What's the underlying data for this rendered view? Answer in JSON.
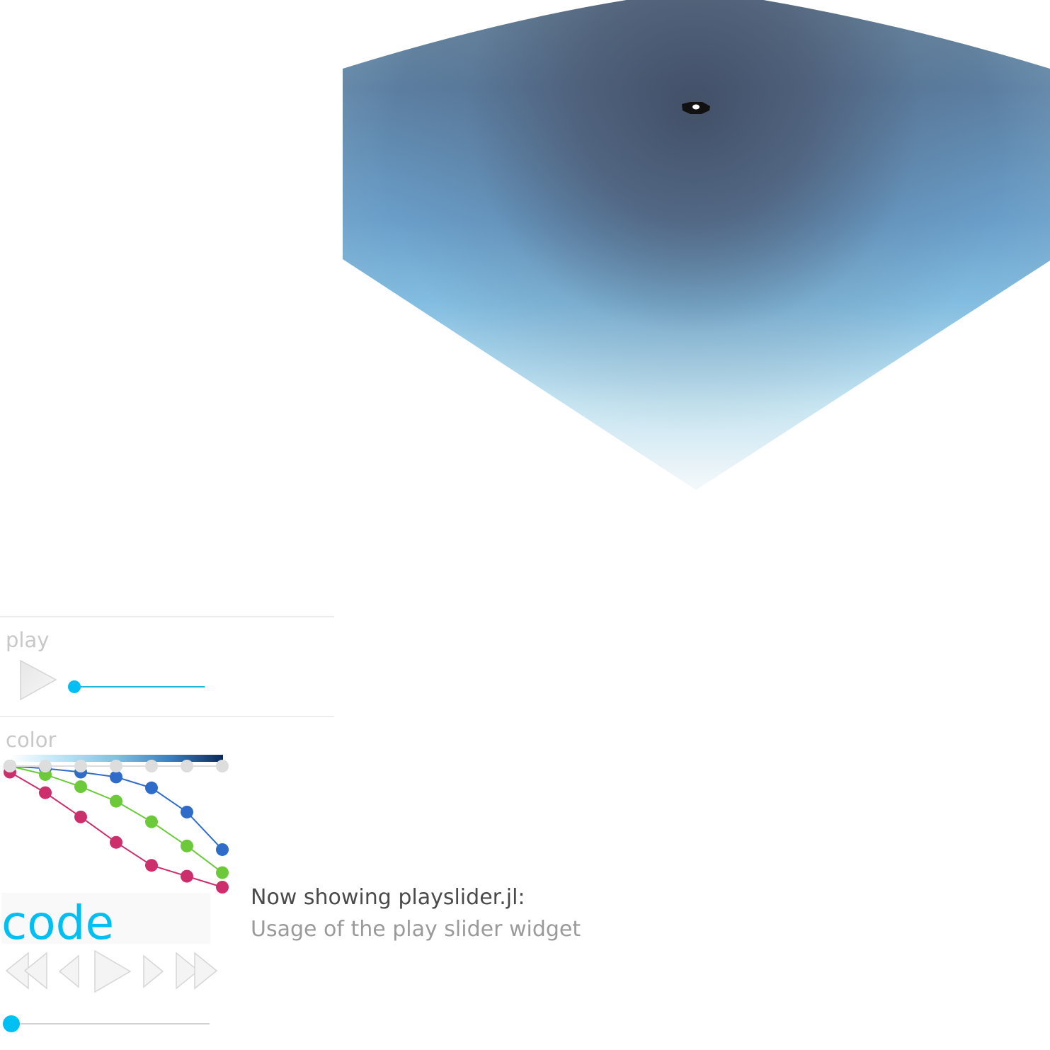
{
  "viewport": {
    "gradient_colors": [
      "#4f5c73",
      "#5a84a8",
      "#7fb6d8",
      "#f2f7fa"
    ],
    "marker_icon": "camera-target-icon"
  },
  "play_section": {
    "label": "play",
    "button_icon": "play-icon",
    "slider_value": 0,
    "slider_color": "#00c0f3"
  },
  "color_section": {
    "label": "color",
    "colormap_colors": [
      "#ffffff",
      "#b9e3f5",
      "#7fc0e2",
      "#3a7fbf",
      "#0c2a5c"
    ],
    "series": [
      {
        "color": "#dddddd",
        "values": [
          1.0,
          1.0,
          1.0,
          1.0,
          1.0,
          1.0,
          1.0
        ]
      },
      {
        "color": "#2f6bc8",
        "values": [
          1.0,
          0.98,
          0.95,
          0.91,
          0.82,
          0.62,
          0.31
        ]
      },
      {
        "color": "#6cc93a",
        "values": [
          1.0,
          0.93,
          0.83,
          0.71,
          0.54,
          0.34,
          0.12
        ]
      },
      {
        "color": "#cd2f6d",
        "values": [
          0.95,
          0.78,
          0.58,
          0.37,
          0.18,
          0.09,
          0.0
        ]
      }
    ]
  },
  "code": {
    "label": "code"
  },
  "status": {
    "title": "Now showing playslider.jl:",
    "description": "Usage of the play slider widget"
  },
  "transport": {
    "icons": [
      "skip-to-start-icon",
      "step-back-icon",
      "play-icon",
      "step-forward-icon",
      "skip-to-end-icon"
    ]
  },
  "bottom_slider": {
    "value": 0,
    "color": "#00c0f3"
  }
}
